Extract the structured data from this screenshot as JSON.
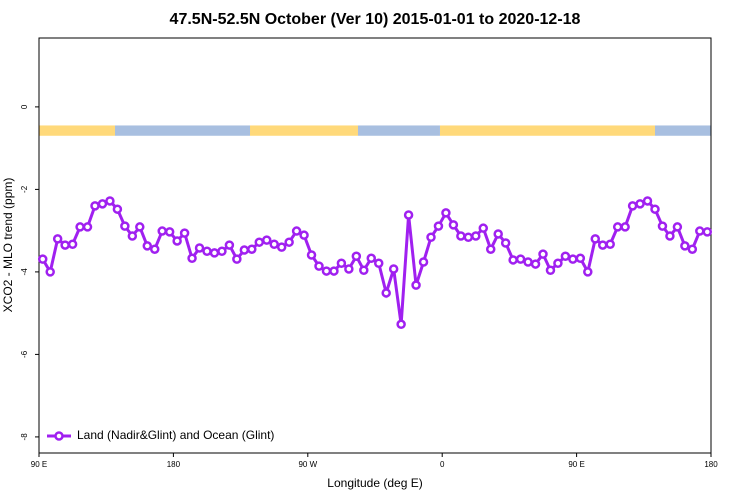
{
  "chart_data": {
    "type": "line",
    "title": "47.5N-52.5N October (Ver 10)   2015-01-01 to 2020-12-18",
    "x_label": "Longitude (deg E)",
    "y_label": "XCO2 - MLO trend (ppm)",
    "xlim": [
      90,
      540
    ],
    "ylim": [
      -8.39,
      1.67
    ],
    "xticks": [
      {
        "value": 90,
        "label": "90 E"
      },
      {
        "value": 180,
        "label": "180"
      },
      {
        "value": 270,
        "label": "90 W"
      },
      {
        "value": 360,
        "label": "0"
      },
      {
        "value": 450,
        "label": "90 E"
      },
      {
        "value": 540,
        "label": "180"
      }
    ],
    "yticks": [
      0,
      -2,
      -4,
      -6,
      -8
    ],
    "legend": "bottom-left",
    "land_ocean_strip": {
      "y": [
        -0.45,
        -0.7
      ],
      "land_color": "#ffd97a",
      "ocean_color": "#a8bfe0",
      "land": [
        [
          90,
          140.9
        ],
        [
          231.3,
          303.6
        ],
        [
          358.5,
          502.5
        ]
      ],
      "ocean": [
        [
          140.9,
          231.3
        ],
        [
          303.6,
          358.5
        ],
        [
          502.5,
          540
        ]
      ]
    },
    "x": [
      92.5,
      97.5,
      102.5,
      107.5,
      112.5,
      117.5,
      122.5,
      127.5,
      132.5,
      137.5,
      142.5,
      147.5,
      152.5,
      157.5,
      162.5,
      167.5,
      172.5,
      177.5,
      182.5,
      187.5,
      192.5,
      197.5,
      202.5,
      207.5,
      212.5,
      217.5,
      222.5,
      227.5,
      232.5,
      237.5,
      242.5,
      247.5,
      252.5,
      257.5,
      262.5,
      267.5,
      272.5,
      277.5,
      282.5,
      287.5,
      292.5,
      297.5,
      302.5,
      307.5,
      312.5,
      317.5,
      322.5,
      327.5,
      332.5,
      337.5,
      342.5,
      347.5,
      352.5,
      357.5,
      362.5,
      367.5,
      372.5,
      377.5,
      382.5,
      387.5,
      392.5,
      397.5,
      402.5,
      407.5,
      412.5,
      417.5,
      422.5,
      427.5,
      432.5,
      437.5,
      442.5,
      447.5,
      452.5,
      457.5,
      462.5,
      467.5,
      472.5,
      477.5,
      482.5,
      487.5,
      492.5,
      497.5,
      502.5,
      507.5,
      512.5,
      517.5,
      522.5,
      527.5,
      532.5,
      537.5
    ],
    "series": [
      {
        "name": "Land (Nadir&Glint) and Ocean (Glint)",
        "color": "#a020f0",
        "values": [
          -3.69,
          -4.0,
          -3.2,
          -3.35,
          -3.33,
          -2.91,
          -2.91,
          -2.4,
          -2.35,
          -2.28,
          -2.48,
          -2.89,
          -3.13,
          -2.91,
          -3.37,
          -3.45,
          -3.01,
          -3.03,
          -3.25,
          -3.06,
          -3.67,
          -3.42,
          -3.5,
          -3.54,
          -3.5,
          -3.35,
          -3.69,
          -3.47,
          -3.45,
          -3.28,
          -3.23,
          -3.33,
          -3.4,
          -3.28,
          -3.01,
          -3.11,
          -3.59,
          -3.86,
          -3.98,
          -3.98,
          -3.79,
          -3.93,
          -3.62,
          -3.96,
          -3.67,
          -3.79,
          -4.51,
          -3.93,
          -5.27,
          -2.62,
          -4.32,
          -3.76,
          -3.16,
          -2.89,
          -2.57,
          -2.86,
          -3.13,
          -3.16,
          -3.13,
          -2.94,
          -3.45,
          -3.08,
          -3.3,
          -3.71,
          -3.69,
          -3.76,
          -3.81,
          -3.57,
          -3.96,
          -3.79,
          -3.62,
          -3.69,
          -3.67,
          -4.0,
          -3.2,
          -3.35,
          -3.33,
          -2.91,
          -2.91,
          -2.4,
          -2.35,
          -2.28,
          -2.48,
          -2.89,
          -3.13,
          -2.91,
          -3.37,
          -3.45,
          -3.01,
          -3.03
        ]
      }
    ]
  }
}
